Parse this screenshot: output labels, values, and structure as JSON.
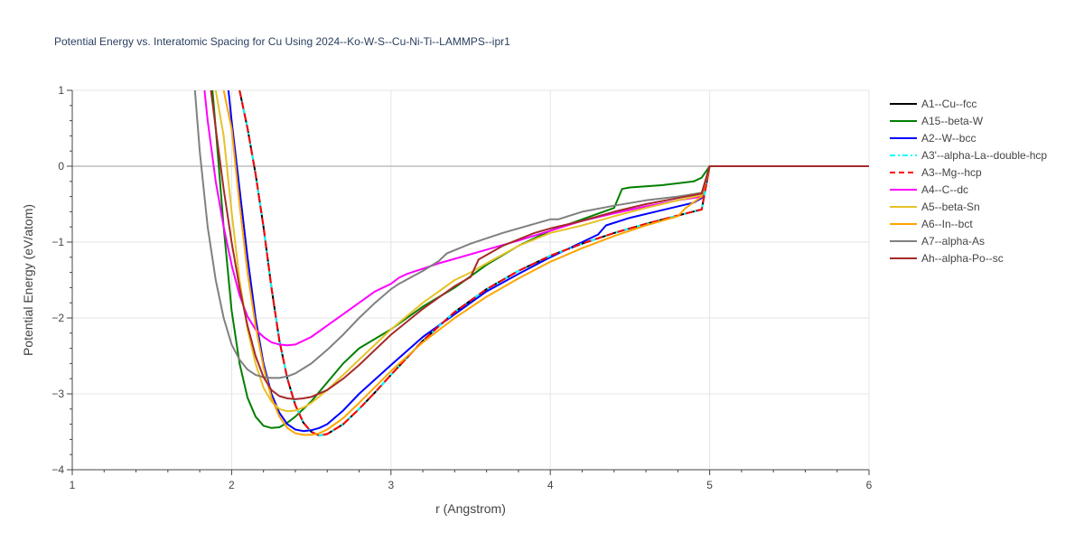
{
  "chart_data": {
    "type": "line",
    "title": "Potential Energy vs. Interatomic Spacing for Cu Using 2024--Ko-W-S--Cu-Ni-Ti--LAMMPS--ipr1",
    "xlabel": "r (Angstrom)",
    "ylabel": "Potential Energy (eV/atom)",
    "xlim": [
      1,
      6
    ],
    "ylim": [
      -4,
      1
    ],
    "xticks": [
      "1",
      "2",
      "3",
      "4",
      "5",
      "6"
    ],
    "yticks": [
      "1",
      "0",
      "−1",
      "−2",
      "−3",
      "−4"
    ],
    "grid": true,
    "legend_position": "right",
    "series": [
      {
        "name": "A1--Cu--fcc",
        "color": "#000000",
        "dash": "solid",
        "x": [
          2.05,
          2.1,
          2.15,
          2.2,
          2.25,
          2.3,
          2.35,
          2.4,
          2.45,
          2.5,
          2.55,
          2.6,
          2.7,
          2.8,
          2.9,
          3.0,
          3.2,
          3.4,
          3.6,
          3.8,
          4.0,
          4.2,
          4.4,
          4.6,
          4.8,
          4.95,
          5.0,
          6.0
        ],
        "y": [
          1.0,
          0.5,
          -0.1,
          -0.8,
          -1.6,
          -2.3,
          -2.8,
          -3.15,
          -3.38,
          -3.5,
          -3.55,
          -3.53,
          -3.4,
          -3.2,
          -2.98,
          -2.75,
          -2.3,
          -1.92,
          -1.62,
          -1.38,
          -1.18,
          -1.02,
          -0.88,
          -0.76,
          -0.65,
          -0.57,
          0.0,
          0.0
        ]
      },
      {
        "name": "A15--beta-W",
        "color": "#008000",
        "dash": "solid",
        "x": [
          1.88,
          1.9,
          1.95,
          2.0,
          2.05,
          2.1,
          2.15,
          2.2,
          2.25,
          2.3,
          2.35,
          2.4,
          2.5,
          2.6,
          2.7,
          2.8,
          3.0,
          3.2,
          3.4,
          3.6,
          3.8,
          4.0,
          4.2,
          4.4,
          4.45,
          4.5,
          4.7,
          4.9,
          4.95,
          5.0,
          6.0
        ],
        "y": [
          1.0,
          0.5,
          -0.8,
          -1.9,
          -2.6,
          -3.05,
          -3.3,
          -3.42,
          -3.45,
          -3.44,
          -3.38,
          -3.3,
          -3.1,
          -2.85,
          -2.6,
          -2.4,
          -2.15,
          -1.85,
          -1.6,
          -1.3,
          -1.05,
          -0.85,
          -0.7,
          -0.55,
          -0.3,
          -0.28,
          -0.25,
          -0.2,
          -0.15,
          0.0,
          0.0
        ]
      },
      {
        "name": "A2--W--bcc",
        "color": "#0000ff",
        "dash": "solid",
        "x": [
          1.98,
          2.0,
          2.05,
          2.1,
          2.15,
          2.2,
          2.25,
          2.3,
          2.35,
          2.4,
          2.45,
          2.5,
          2.55,
          2.6,
          2.7,
          2.8,
          3.0,
          3.2,
          3.4,
          3.6,
          3.8,
          4.0,
          4.2,
          4.3,
          4.35,
          4.5,
          4.7,
          4.9,
          4.95,
          5.0,
          6.0
        ],
        "y": [
          1.0,
          0.6,
          -0.3,
          -1.2,
          -2.0,
          -2.6,
          -3.0,
          -3.25,
          -3.4,
          -3.47,
          -3.49,
          -3.48,
          -3.45,
          -3.4,
          -3.22,
          -3.0,
          -2.62,
          -2.25,
          -1.95,
          -1.65,
          -1.42,
          -1.2,
          -1.0,
          -0.9,
          -0.78,
          -0.68,
          -0.58,
          -0.48,
          -0.42,
          0.0,
          0.0
        ]
      },
      {
        "name": "A3'--alpha-La--double-hcp",
        "color": "#00ffff",
        "dash": "dashdot",
        "x": [
          2.05,
          2.1,
          2.15,
          2.2,
          2.25,
          2.3,
          2.35,
          2.4,
          2.45,
          2.5,
          2.55,
          2.6,
          2.7,
          2.8,
          2.9,
          3.0,
          3.2,
          3.4,
          3.6,
          3.8,
          4.0,
          4.2,
          4.4,
          4.6,
          4.8,
          4.95,
          5.0,
          6.0
        ],
        "y": [
          1.0,
          0.5,
          -0.1,
          -0.8,
          -1.6,
          -2.3,
          -2.8,
          -3.15,
          -3.38,
          -3.5,
          -3.55,
          -3.53,
          -3.4,
          -3.2,
          -2.98,
          -2.75,
          -2.3,
          -1.92,
          -1.62,
          -1.38,
          -1.18,
          -1.02,
          -0.88,
          -0.76,
          -0.65,
          -0.57,
          0.0,
          0.0
        ]
      },
      {
        "name": "A3--Mg--hcp",
        "color": "#ff0000",
        "dash": "dash",
        "x": [
          2.05,
          2.1,
          2.15,
          2.2,
          2.25,
          2.3,
          2.35,
          2.4,
          2.45,
          2.5,
          2.55,
          2.6,
          2.7,
          2.8,
          2.9,
          3.0,
          3.2,
          3.4,
          3.6,
          3.8,
          4.0,
          4.2,
          4.4,
          4.6,
          4.8,
          4.95,
          5.0,
          6.0
        ],
        "y": [
          1.0,
          0.5,
          -0.1,
          -0.8,
          -1.6,
          -2.3,
          -2.8,
          -3.15,
          -3.38,
          -3.5,
          -3.55,
          -3.53,
          -3.4,
          -3.2,
          -2.98,
          -2.75,
          -2.3,
          -1.92,
          -1.62,
          -1.38,
          -1.18,
          -1.02,
          -0.88,
          -0.76,
          -0.65,
          -0.57,
          0.0,
          0.0
        ]
      },
      {
        "name": "A4--C--dc",
        "color": "#ff00ff",
        "dash": "solid",
        "x": [
          1.83,
          1.85,
          1.9,
          1.95,
          2.0,
          2.05,
          2.1,
          2.15,
          2.2,
          2.25,
          2.3,
          2.35,
          2.4,
          2.5,
          2.6,
          2.7,
          2.8,
          2.9,
          3.0,
          3.05,
          3.1,
          3.2,
          3.3,
          3.4,
          3.6,
          3.8,
          4.0,
          4.2,
          4.4,
          4.6,
          4.8,
          4.95,
          5.0,
          6.0
        ],
        "y": [
          1.0,
          0.6,
          -0.2,
          -0.8,
          -1.3,
          -1.7,
          -1.98,
          -2.15,
          -2.25,
          -2.32,
          -2.35,
          -2.36,
          -2.35,
          -2.25,
          -2.1,
          -1.95,
          -1.8,
          -1.65,
          -1.55,
          -1.47,
          -1.42,
          -1.35,
          -1.28,
          -1.22,
          -1.1,
          -0.98,
          -0.85,
          -0.72,
          -0.62,
          -0.53,
          -0.45,
          -0.4,
          0.0,
          0.0
        ]
      },
      {
        "name": "A5--beta-Sn",
        "color": "#e6c229",
        "dash": "solid",
        "x": [
          1.9,
          1.95,
          2.0,
          2.05,
          2.1,
          2.15,
          2.2,
          2.25,
          2.3,
          2.35,
          2.4,
          2.45,
          2.5,
          2.6,
          2.7,
          2.8,
          3.0,
          3.2,
          3.4,
          3.5,
          3.6,
          3.8,
          4.0,
          4.2,
          4.4,
          4.6,
          4.8,
          4.95,
          5.0,
          6.0
        ],
        "y": [
          1.0,
          0.4,
          -0.6,
          -1.5,
          -2.15,
          -2.6,
          -2.92,
          -3.1,
          -3.2,
          -3.23,
          -3.22,
          -3.18,
          -3.12,
          -2.95,
          -2.75,
          -2.55,
          -2.15,
          -1.8,
          -1.5,
          -1.4,
          -1.28,
          -1.05,
          -0.88,
          -0.78,
          -0.66,
          -0.55,
          -0.45,
          -0.38,
          0.0,
          0.0
        ]
      },
      {
        "name": "A6--In--bct",
        "color": "#ffa500",
        "dash": "solid",
        "x": [
          1.95,
          2.0,
          2.05,
          2.1,
          2.15,
          2.2,
          2.25,
          2.3,
          2.35,
          2.4,
          2.45,
          2.5,
          2.55,
          2.6,
          2.7,
          2.8,
          3.0,
          3.2,
          3.4,
          3.6,
          3.8,
          4.0,
          4.2,
          4.4,
          4.6,
          4.8,
          4.85,
          4.95,
          5.0,
          6.0
        ],
        "y": [
          1.0,
          0.5,
          -0.5,
          -1.4,
          -2.1,
          -2.65,
          -3.05,
          -3.3,
          -3.45,
          -3.52,
          -3.54,
          -3.54,
          -3.52,
          -3.47,
          -3.32,
          -3.12,
          -2.7,
          -2.32,
          -2.0,
          -1.72,
          -1.48,
          -1.26,
          -1.08,
          -0.92,
          -0.78,
          -0.66,
          -0.55,
          -0.4,
          0.0,
          0.0
        ]
      },
      {
        "name": "A7--alpha-As",
        "color": "#808080",
        "dash": "solid",
        "x": [
          1.77,
          1.8,
          1.85,
          1.9,
          1.95,
          2.0,
          2.05,
          2.1,
          2.15,
          2.2,
          2.25,
          2.3,
          2.35,
          2.4,
          2.5,
          2.6,
          2.7,
          2.8,
          2.9,
          3.0,
          3.05,
          3.2,
          3.3,
          3.35,
          3.5,
          3.7,
          3.9,
          4.0,
          4.05,
          4.2,
          4.4,
          4.6,
          4.8,
          4.95,
          5.0,
          6.0
        ],
        "y": [
          1.0,
          0.2,
          -0.8,
          -1.5,
          -2.0,
          -2.35,
          -2.55,
          -2.68,
          -2.75,
          -2.78,
          -2.79,
          -2.79,
          -2.77,
          -2.73,
          -2.6,
          -2.42,
          -2.22,
          -2.0,
          -1.8,
          -1.62,
          -1.55,
          -1.38,
          -1.25,
          -1.15,
          -1.02,
          -0.88,
          -0.76,
          -0.7,
          -0.7,
          -0.6,
          -0.52,
          -0.45,
          -0.4,
          -0.35,
          0.0,
          0.0
        ]
      },
      {
        "name": "Ah--alpha-Po--sc",
        "color": "#a52a2a",
        "dash": "solid",
        "x": [
          1.87,
          1.9,
          1.95,
          2.0,
          2.05,
          2.1,
          2.15,
          2.2,
          2.25,
          2.3,
          2.35,
          2.4,
          2.45,
          2.5,
          2.6,
          2.7,
          2.8,
          3.0,
          3.2,
          3.4,
          3.5,
          3.55,
          3.7,
          3.9,
          4.0,
          4.2,
          4.4,
          4.6,
          4.8,
          4.95,
          5.0,
          6.0
        ],
        "y": [
          1.0,
          0.5,
          -0.3,
          -1.0,
          -1.6,
          -2.1,
          -2.5,
          -2.78,
          -2.95,
          -3.03,
          -3.06,
          -3.07,
          -3.06,
          -3.04,
          -2.95,
          -2.8,
          -2.62,
          -2.22,
          -1.88,
          -1.58,
          -1.46,
          -1.23,
          -1.05,
          -0.88,
          -0.82,
          -0.72,
          -0.6,
          -0.5,
          -0.42,
          -0.36,
          0.0,
          0.0
        ]
      }
    ]
  }
}
